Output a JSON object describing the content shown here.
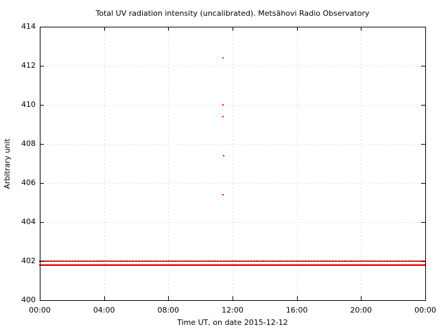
{
  "chart_data": {
    "type": "scatter",
    "title": "Total UV radiation intensity (uncalibrated). Metsähovi Radio Observatory",
    "xlabel": "Time UT, on date 2015-12-12",
    "ylabel": "Arbitrary unit",
    "xlim": [
      0,
      24
    ],
    "ylim": [
      400,
      414
    ],
    "x_tick_values": [
      0,
      4,
      8,
      12,
      16,
      20,
      24
    ],
    "x_tick_labels": [
      "00:00",
      "04:00",
      "08:00",
      "12:00",
      "16:00",
      "20:00",
      "00:00"
    ],
    "y_tick_values": [
      400,
      402,
      404,
      406,
      408,
      410,
      412,
      414
    ],
    "y_tick_labels": [
      "400",
      "402",
      "404",
      "406",
      "408",
      "410",
      "412",
      "414"
    ],
    "grid": true,
    "legend": "none",
    "marker_color": "#ff0000",
    "series": [
      {
        "baseline_levels": [
          401.8,
          402.0
        ],
        "baseline_x_range": [
          0,
          24
        ],
        "outliers": [
          {
            "x": 11.4,
            "y": 412.4
          },
          {
            "x": 11.4,
            "y": 410.0
          },
          {
            "x": 11.4,
            "y": 409.4
          },
          {
            "x": 11.45,
            "y": 407.4
          },
          {
            "x": 11.4,
            "y": 405.4
          }
        ]
      }
    ]
  }
}
